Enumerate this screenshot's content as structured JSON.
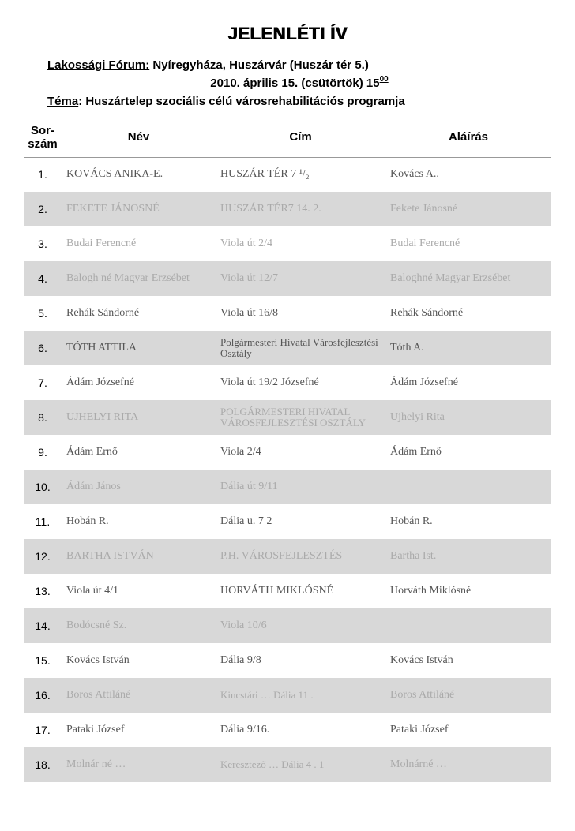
{
  "title": "JELENLÉTI ÍV",
  "meta": {
    "forum_label": "Lakossági Fórum:",
    "forum_value": "Nyíregyháza, Huszárvár (Huszár tér 5.)",
    "date_line_prefix": "2010. április 15.  (csütörtök) 15",
    "date_line_sup": "00",
    "tema_label": "Téma",
    "tema_value": ": Huszártelep szociális célú városrehabilitációs programja"
  },
  "headers": {
    "sor": "Sor-szám",
    "nev": "Név",
    "cim": "Cím",
    "alairas": "Aláírás"
  },
  "rows": [
    {
      "n": "1.",
      "nev": "KOVÁCS ANIKA-E.",
      "cim": "HUSZÁR TÉR 7 ¹/₂",
      "sig": "Kovács  A..",
      "cls": ""
    },
    {
      "n": "2.",
      "nev": "FEKETE JÁNOSNÉ",
      "cim": "HUSZÁR TÉR7  14. 2.",
      "sig": "Fekete  Jánosné",
      "cls": "faint"
    },
    {
      "n": "3.",
      "nev": "Budai  Ferencné",
      "cim": "Viola  út   2/4",
      "sig": "Budai  Ferencné",
      "cls": "faint"
    },
    {
      "n": "4.",
      "nev": "Balogh né  Magyar Erzsébet",
      "cim": "Viola  út 12/7",
      "sig": "Baloghné Magyar Erzsébet",
      "cls": "faint"
    },
    {
      "n": "5.",
      "nev": "Rehák Sándorné",
      "cim": "Viola út 16/8",
      "sig": "Rehák Sándorné",
      "cls": ""
    },
    {
      "n": "6.",
      "nev": "TÓTH  ATTILA",
      "cim": "Polgármesteri Hivatal  Városfejlesztési Osztály",
      "sig": "Tóth A.",
      "cls": "",
      "small": true
    },
    {
      "n": "7.",
      "nev": "Ádám Józsefné",
      "cim": "Viola út 19/2  Józsefné",
      "sig": "Ádám Józsefné",
      "cls": ""
    },
    {
      "n": "8.",
      "nev": "UJHELYI  RITA",
      "cim": "POLGÁRMESTERI HIVATAL  VÁROSFEJLESZTÉSI OSZTÁLY",
      "sig": "Ujhelyi  Rita",
      "cls": "faint",
      "small": true
    },
    {
      "n": "9.",
      "nev": "Ádám  Ernő",
      "cim": "Viola   2/4",
      "sig": "Ádám  Ernő",
      "cls": ""
    },
    {
      "n": "10.",
      "nev": "Ádám  János",
      "cim": "Dália  út  9/11",
      "sig": "",
      "cls": "faint"
    },
    {
      "n": "11.",
      "nev": "Hobán  R.",
      "cim": "Dália u. 7 2",
      "sig": "Hobán  R.",
      "cls": ""
    },
    {
      "n": "12.",
      "nev": "BARTHA  ISTVÁN",
      "cim": "P.H.  VÁROSFEJLESZTÉS",
      "sig": "Bartha  Ist.",
      "cls": "faint"
    },
    {
      "n": "13.",
      "nev": "Viola  út 4/1",
      "cim": "HORVÁTH  MIKLÓSNÉ",
      "sig": "Horváth Miklósné",
      "cls": ""
    },
    {
      "n": "14.",
      "nev": "Bodócsné  Sz.",
      "cim": "Viola  10/6",
      "sig": "",
      "cls": "faint"
    },
    {
      "n": "15.",
      "nev": "Kovács István",
      "cim": "Dália  9/8",
      "sig": "Kovács István",
      "cls": ""
    },
    {
      "n": "16.",
      "nev": "Boros  Attiláné",
      "cim": "Kincstári  …  Dália  11 .",
      "sig": "Boros  Attiláné",
      "cls": "faint",
      "small": true
    },
    {
      "n": "17.",
      "nev": "Pataki  József",
      "cim": "Dália   9/16.",
      "sig": "Pataki  József",
      "cls": ""
    },
    {
      "n": "18.",
      "nev": "Molnár né  …",
      "cim": "Keresztező  …  Dália   4 . 1",
      "sig": "Molnárné …",
      "cls": "faint",
      "small": true
    }
  ],
  "colors": {
    "even_row_bg": "#d8d8d8",
    "text": "#000000",
    "hand": "#555555",
    "hand_faint": "#aaaaaa",
    "background": "#ffffff"
  }
}
